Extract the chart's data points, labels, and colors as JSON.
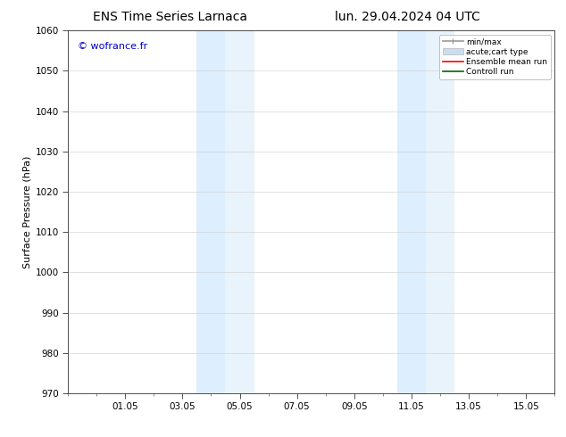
{
  "title_left": "ENS Time Series Larnaca",
  "title_right": "lun. 29.04.2024 04 UTC",
  "ylabel": "Surface Pressure (hPa)",
  "ylim": [
    970,
    1060
  ],
  "yticks": [
    970,
    980,
    990,
    1000,
    1010,
    1020,
    1030,
    1040,
    1050,
    1060
  ],
  "xtick_labels": [
    "01.05",
    "03.05",
    "05.05",
    "07.05",
    "09.05",
    "11.05",
    "13.05",
    "15.05"
  ],
  "xtick_positions": [
    2,
    4,
    6,
    8,
    10,
    12,
    14,
    16
  ],
  "x_min": 0,
  "x_max": 17,
  "shaded_bands": [
    {
      "x_start": 4.5,
      "x_end": 5.5,
      "color": "#ddeeff"
    },
    {
      "x_start": 5.5,
      "x_end": 6.5,
      "color": "#e8f3fc"
    },
    {
      "x_start": 11.5,
      "x_end": 12.5,
      "color": "#ddeeff"
    },
    {
      "x_start": 12.5,
      "x_end": 13.5,
      "color": "#e8f3fc"
    }
  ],
  "watermark": "© wofrance.fr",
  "watermark_color": "#0000cc",
  "bg_color": "#ffffff",
  "grid_color": "#cccccc",
  "legend_items": [
    {
      "label": "min/max",
      "color": "#999999",
      "lw": 1.2,
      "style": "error"
    },
    {
      "label": "acute;cart type",
      "color": "#ccddee",
      "lw": 6,
      "style": "filled"
    },
    {
      "label": "Ensemble mean run",
      "color": "#ff0000",
      "lw": 1.2,
      "style": "line"
    },
    {
      "label": "Controll run",
      "color": "#006600",
      "lw": 1.2,
      "style": "line"
    }
  ],
  "title_fontsize": 10,
  "axis_fontsize": 8,
  "tick_fontsize": 7.5,
  "watermark_fontsize": 8
}
